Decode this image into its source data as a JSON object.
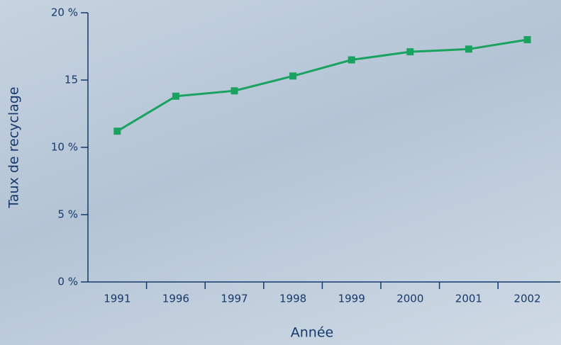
{
  "chart_data": {
    "type": "line",
    "y_label": "Taux de recyclage",
    "x_label": "Année",
    "categories": [
      "1991",
      "1996",
      "1997",
      "1998",
      "1999",
      "2000",
      "2001",
      "2002"
    ],
    "series": [
      {
        "color": "#1aa260",
        "values": [
          11.2,
          13.8,
          14.2,
          15.3,
          16.5,
          17.1,
          17.3,
          18.0
        ]
      }
    ],
    "ylim": [
      0,
      20
    ],
    "yticks": [
      {
        "value": 0,
        "label": "0 %"
      },
      {
        "value": 5,
        "label": "5 %"
      },
      {
        "value": 10,
        "label": "10 %"
      },
      15,
      {
        "value": 20,
        "label": "20 %"
      }
    ],
    "axis_color": "#17396b"
  }
}
